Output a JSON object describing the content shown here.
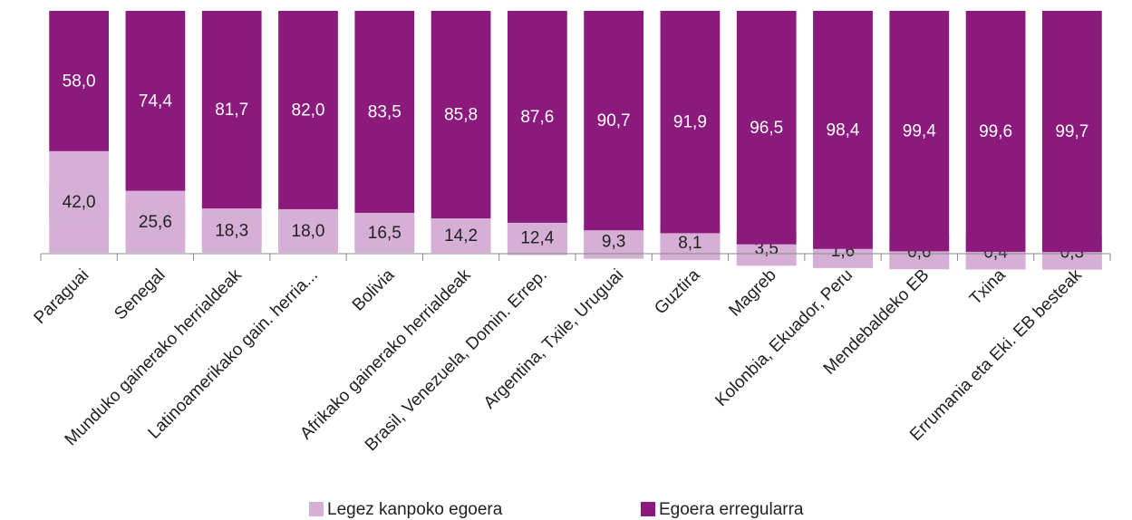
{
  "chart_data": {
    "type": "stacked_bar",
    "categories": [
      "Paraguai",
      "Senegal",
      "Munduko gainerako herrialdeak",
      "Latinoamerikako gain. herria...",
      "Bolivia",
      "Afrikako gainerako herrialdeak",
      "Brasil, Venezuela, Domin. Errep.",
      "Argentina, Txile, Uruguai",
      "Guztira",
      "Magreb",
      "Kolonbia, Ekuador, Peru",
      "Mendebaldeko EB",
      "Txina",
      "Errumania eta Eki. EB besteak"
    ],
    "series": [
      {
        "name": "Legez kanpoko egoera",
        "color": "#d5afd6",
        "values": [
          42.0,
          25.6,
          18.3,
          18.0,
          16.5,
          14.2,
          12.4,
          9.3,
          8.1,
          3.5,
          1.6,
          0.6,
          0.4,
          0.3
        ],
        "value_labels": [
          "42,0",
          "25,6",
          "18,3",
          "18,0",
          "16,5",
          "14,2",
          "12,4",
          "9,3",
          "8,1",
          "3,5",
          "1,6",
          "0,6",
          "0,4",
          "0,3"
        ]
      },
      {
        "name": "Egoera erregularra",
        "color": "#8b1a7c",
        "values": [
          58.0,
          74.4,
          81.7,
          82.0,
          83.5,
          85.8,
          87.6,
          90.7,
          91.9,
          96.5,
          98.4,
          99.4,
          99.6,
          99.7
        ],
        "value_labels": [
          "58,0",
          "74,4",
          "81,7",
          "82,0",
          "83,5",
          "85,8",
          "87,6",
          "90,7",
          "91,9",
          "96,5",
          "98,4",
          "99,4",
          "99,6",
          "99,7"
        ]
      }
    ],
    "ylim": [
      0,
      100
    ]
  }
}
